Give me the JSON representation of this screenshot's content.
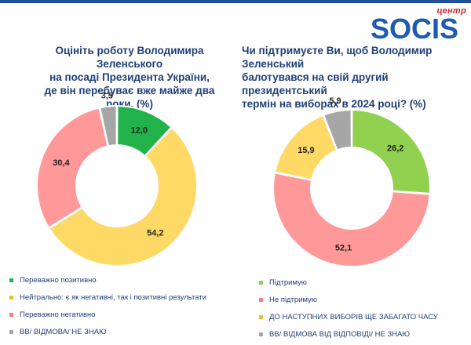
{
  "logo": {
    "small": "центр",
    "main": "SOCIS",
    "color": "#1e5bb0",
    "accent": "#d2232a"
  },
  "left": {
    "title_lines": [
      "Оцініть роботу Володимира Зеленського",
      "на посаді Президента України,",
      "де він перебуває вже майже два роки. (%)"
    ]
  },
  "right": {
    "title_lines": [
      "Чи підтримуєте Ви, щоб Володимир Зеленський",
      "балотувався на свій другий президентський",
      "термін на виборах в 2024 році? (%)"
    ]
  },
  "chart_data": [
    {
      "type": "pie",
      "title": "Оцініть роботу Володимира Зеленського на посаді Президента України, де він перебуває вже майже два роки. (%)",
      "categories": [
        "Переважно позитивно",
        "Нейтрально: є як негативні, так і позитивні результати",
        "Переважно негативно",
        "ВВ/ ВІДМОВА/ НЕ ЗНАЮ"
      ],
      "values": [
        12.0,
        54.2,
        30.4,
        3.5
      ],
      "labels": [
        "12,0",
        "54,2",
        "30,4",
        "3,5"
      ],
      "colors": [
        "#21b24b",
        "#ffd966",
        "#ff9999",
        "#a6a6a6"
      ],
      "label_colors": [
        "#21b24b",
        "#e6c229",
        "#f08080",
        "#a6a6a6"
      ],
      "donut": true,
      "legend_position": "bottom"
    },
    {
      "type": "pie",
      "title": "Чи підтримуєте Ви, щоб Володимир Зеленський балотувався на свій другий президентський термін на виборах в 2024 році? (%)",
      "categories": [
        "Підтримую",
        "Не підтримую",
        "ДО НАСТУПНИХ ВИБОРІВ ЩЕ ЗАБАГАТО ЧАСУ",
        "ВВ/ ВІДМОВА ВІД ВІДПОВІДІ/ НЕ ЗНАЮ"
      ],
      "values": [
        26.2,
        52.1,
        15.9,
        5.9
      ],
      "labels": [
        "26,2",
        "52,1",
        "15,9",
        "5,9"
      ],
      "colors": [
        "#92d050",
        "#ff9999",
        "#ffd966",
        "#a6a6a6"
      ],
      "label_colors": [
        "#92d050",
        "#f08080",
        "#e6c229",
        "#a6a6a6"
      ],
      "donut": true,
      "legend_position": "bottom"
    }
  ]
}
